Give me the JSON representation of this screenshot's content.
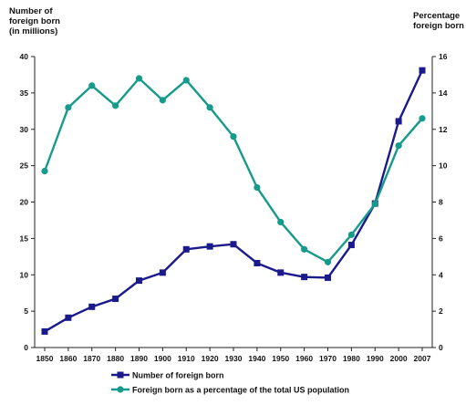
{
  "chart_data": {
    "type": "line",
    "title": "",
    "left_axis_label": [
      "Number of",
      "foreign born",
      "(in millions)"
    ],
    "right_axis_label": [
      "Percentage",
      "foreign born"
    ],
    "x": [
      "1850",
      "1860",
      "1870",
      "1880",
      "1890",
      "1900",
      "1910",
      "1920",
      "1930",
      "1940",
      "1950",
      "1960",
      "1970",
      "1980",
      "1990",
      "2000",
      "2007"
    ],
    "left_ylim": [
      0,
      40
    ],
    "left_ticks": [
      0,
      5,
      10,
      15,
      20,
      25,
      30,
      35,
      40
    ],
    "right_ylim": [
      0,
      16
    ],
    "right_ticks": [
      0,
      2,
      4,
      6,
      8,
      10,
      12,
      14,
      16
    ],
    "grid": false,
    "legend_position": "bottom",
    "series": [
      {
        "name": "Number of foreign born",
        "axis": "left",
        "color": "#1a1a8c",
        "marker": "square",
        "values": [
          2.2,
          4.1,
          5.6,
          6.7,
          9.2,
          10.3,
          13.5,
          13.9,
          14.2,
          11.6,
          10.3,
          9.7,
          9.6,
          14.1,
          19.8,
          31.1,
          38.1
        ]
      },
      {
        "name": "Foreign born as a percentage of the total US population",
        "axis": "right",
        "color": "#169a8c",
        "marker": "circle",
        "values": [
          9.7,
          13.2,
          14.4,
          13.3,
          14.8,
          13.6,
          14.7,
          13.2,
          11.6,
          8.8,
          6.9,
          5.4,
          4.7,
          6.2,
          7.9,
          11.1,
          12.6
        ]
      }
    ]
  }
}
